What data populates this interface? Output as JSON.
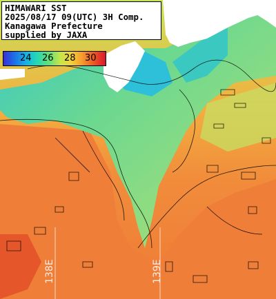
{
  "title": {
    "line1": "HIMAWARI SST",
    "line2": "2025/08/17 09(UTC) 3H Comp.",
    "line3": "Kanagawa Prefecture",
    "line4": "supplied by JAXA"
  },
  "legend": {
    "labels": [
      "24",
      "26",
      "28",
      "30"
    ],
    "colors": [
      "#3a2fd6",
      "#18b0e6",
      "#5fe07a",
      "#f0d23a",
      "#f6a030",
      "#d8162a"
    ]
  },
  "grid": {
    "lon_labels": [
      "138E",
      "139E"
    ]
  },
  "colors": {
    "land": "#ffffff",
    "warm_sea": "#f08a3a",
    "cool_sea": "#7ad48a",
    "bay": "#2ec0d8"
  }
}
